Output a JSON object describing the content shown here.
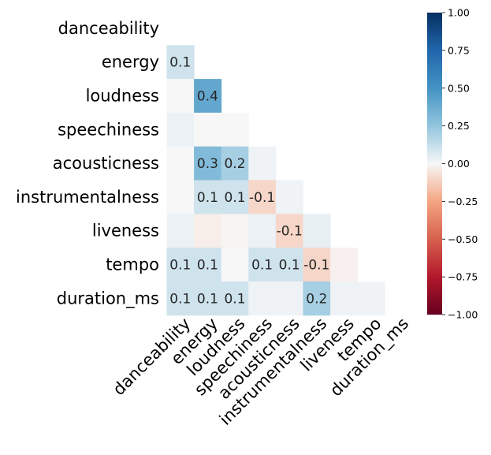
{
  "chart_data": {
    "type": "heatmap",
    "variables": [
      "danceability",
      "energy",
      "loudness",
      "speechiness",
      "acousticness",
      "instrumentalness",
      "liveness",
      "tempo",
      "duration_ms"
    ],
    "mask": "upper-triangle-including-diagonal",
    "values": [
      [
        null,
        null,
        null,
        null,
        null,
        null,
        null,
        null,
        null
      ],
      [
        0.1,
        null,
        null,
        null,
        null,
        null,
        null,
        null,
        null
      ],
      [
        0.0,
        0.4,
        null,
        null,
        null,
        null,
        null,
        null,
        null
      ],
      [
        0.03,
        0.0,
        0.0,
        null,
        null,
        null,
        null,
        null,
        null
      ],
      [
        0.0,
        0.3,
        0.2,
        0.02,
        null,
        null,
        null,
        null,
        null
      ],
      [
        0.0,
        0.1,
        0.1,
        -0.1,
        0.02,
        null,
        null,
        null,
        null
      ],
      [
        0.03,
        -0.03,
        -0.01,
        0.03,
        -0.1,
        0.04,
        null,
        null,
        null
      ],
      [
        0.1,
        0.1,
        0.0,
        0.1,
        0.1,
        -0.1,
        -0.02,
        null,
        null
      ],
      [
        0.1,
        0.1,
        0.1,
        0.02,
        0.02,
        0.2,
        0.02,
        0.02,
        null
      ]
    ],
    "annotations": [
      [
        null,
        null,
        null,
        null,
        null,
        null,
        null,
        null,
        null
      ],
      [
        "0.1",
        null,
        null,
        null,
        null,
        null,
        null,
        null,
        null
      ],
      [
        null,
        "0.4",
        null,
        null,
        null,
        null,
        null,
        null,
        null
      ],
      [
        null,
        null,
        null,
        null,
        null,
        null,
        null,
        null,
        null
      ],
      [
        null,
        "0.3",
        "0.2",
        null,
        null,
        null,
        null,
        null,
        null
      ],
      [
        null,
        "0.1",
        "0.1",
        "-0.1",
        null,
        null,
        null,
        null,
        null
      ],
      [
        null,
        null,
        null,
        null,
        "-0.1",
        null,
        null,
        null,
        null
      ],
      [
        "0.1",
        "0.1",
        null,
        "0.1",
        "0.1",
        "-0.1",
        null,
        null,
        null
      ],
      [
        "0.1",
        "0.1",
        "0.1",
        null,
        null,
        "0.2",
        null,
        null,
        null
      ]
    ],
    "colorbar": {
      "colormap": "RdBu",
      "range": [
        -1.0,
        1.0
      ],
      "tick_labels": [
        "1.00",
        "0.75",
        "0.50",
        "0.25",
        "0.00",
        "−0.25",
        "−0.50",
        "−0.75",
        "−1.00"
      ],
      "tick_values": [
        1.0,
        0.75,
        0.5,
        0.25,
        0.0,
        -0.25,
        -0.5,
        -0.75,
        -1.0
      ]
    }
  }
}
